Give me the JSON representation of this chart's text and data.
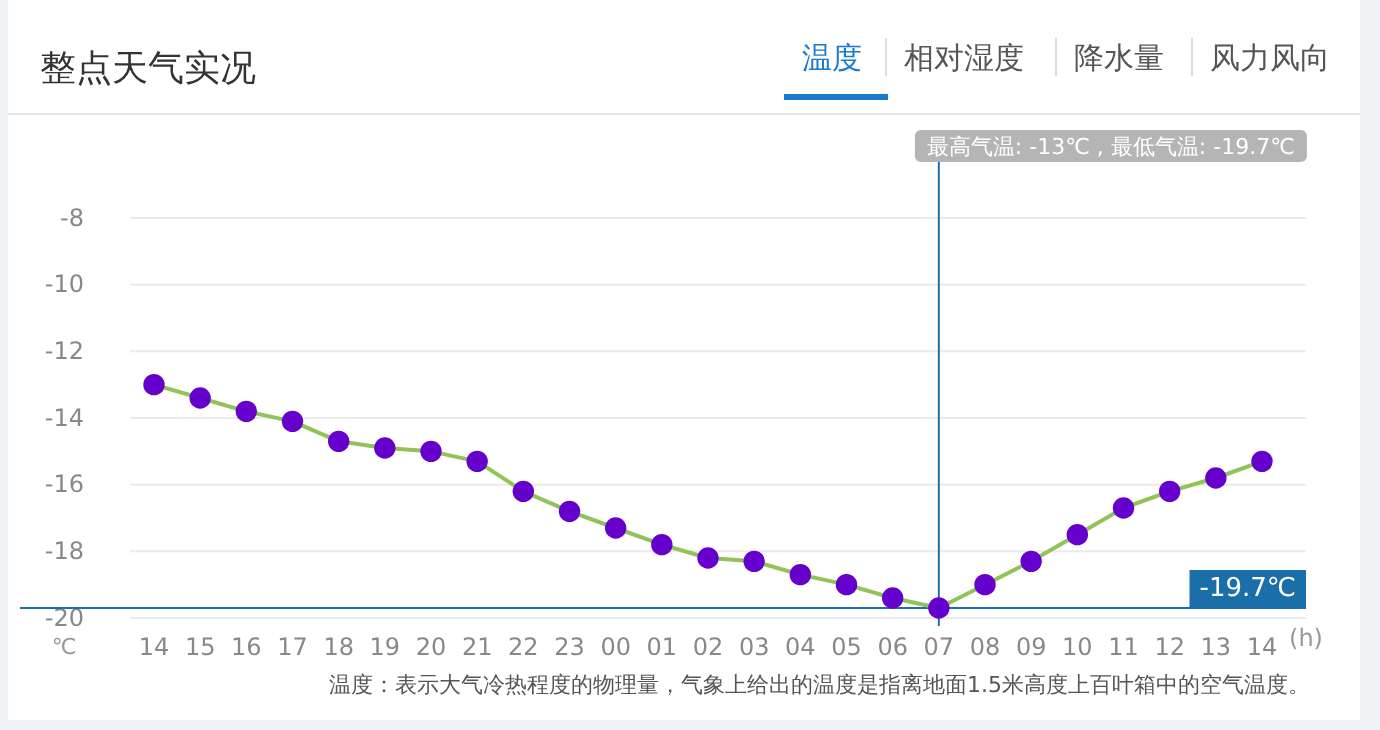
{
  "chart_data": {
    "type": "line",
    "title": "整点天气实况",
    "categories": [
      "14",
      "15",
      "16",
      "17",
      "18",
      "19",
      "20",
      "21",
      "22",
      "23",
      "00",
      "01",
      "02",
      "03",
      "04",
      "05",
      "06",
      "07",
      "08",
      "09",
      "10",
      "11",
      "12",
      "13",
      "14"
    ],
    "series": [
      {
        "color": "#6600cc",
        "values": [
          -13,
          -13.4,
          -13.8,
          -14.1,
          -14.7,
          -14.9,
          -15.0,
          -15.3,
          -16.2,
          -16.8,
          -17.3,
          -17.8,
          -18.2,
          -18.3,
          -18.7,
          -19.0,
          -19.4,
          -19.7,
          -19.0,
          -18.3,
          -17.5,
          -16.7,
          -16.2,
          -15.8,
          -15.3
        ]
      }
    ],
    "ylim": [
      -20,
      -8
    ],
    "yticks": [
      -20,
      -18,
      -16,
      -14,
      -12,
      -10,
      -8
    ],
    "ylabel": "℃",
    "xlabel": "(h)",
    "grid": "y",
    "marker": "circle",
    "line_style": "solid",
    "ref_lines": [
      {
        "axis": "x",
        "value": "07",
        "color": "#1a6fa8"
      },
      {
        "axis": "y",
        "value": -19.7,
        "label": "-19.7℃",
        "color": "#1a6fa8"
      }
    ],
    "annotations": [
      "温度",
      "相对湿度",
      "降水量",
      "风力风向",
      {
        "text": "最高气温: -13℃ , 最低气温: -19.7℃",
        "x": "07"
      },
      "温度：表示大气冷热程度的物理量，气象上给出的温度是指离地面1.5米高度上百叶箱中的空气温度。"
    ]
  }
}
